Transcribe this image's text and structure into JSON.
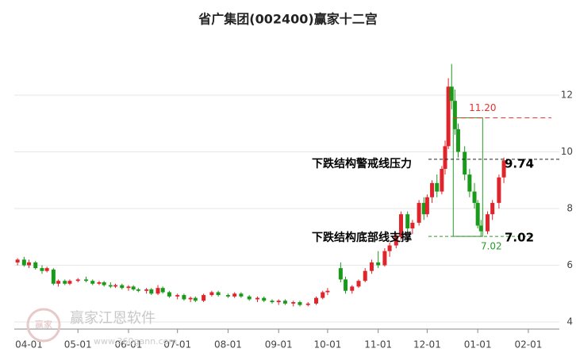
{
  "chart_data": {
    "type": "candlestick",
    "title": "省广集团(002400)赢家十二宫",
    "x": [
      "03-25",
      "03-29",
      "04-01",
      "04-05",
      "04-09",
      "04-12",
      "04-16",
      "04-19",
      "04-23",
      "04-26",
      "05-01",
      "05-06",
      "05-10",
      "05-14",
      "05-17",
      "05-21",
      "05-24",
      "05-28",
      "06-01",
      "06-04",
      "06-07",
      "06-12",
      "06-15",
      "06-19",
      "06-22",
      "06-26",
      "07-01",
      "07-05",
      "07-09",
      "07-12",
      "07-17",
      "07-22",
      "07-26",
      "08-01",
      "08-05",
      "08-09",
      "08-14",
      "08-19",
      "08-23",
      "08-28",
      "09-01",
      "09-05",
      "09-10",
      "09-14",
      "09-19",
      "09-24",
      "09-28",
      "10-01",
      "10-09",
      "10-12",
      "10-16",
      "10-20",
      "10-24",
      "10-28",
      "11-01",
      "11-05",
      "11-08",
      "11-12",
      "11-15",
      "11-19",
      "11-22",
      "11-26",
      "11-29",
      "12-01",
      "12-04",
      "12-07",
      "12-10",
      "12-12",
      "12-14",
      "12-16",
      "12-18",
      "12-20",
      "12-24",
      "12-27",
      "12-30",
      "01-01",
      "01-03",
      "01-07",
      "01-10",
      "01-14",
      "01-17"
    ],
    "open": [
      6.1,
      6.2,
      6.0,
      6.1,
      5.9,
      5.8,
      5.85,
      5.35,
      5.45,
      5.35,
      5.45,
      5.5,
      5.45,
      5.35,
      5.4,
      5.3,
      5.25,
      5.3,
      5.2,
      5.25,
      5.15,
      5.1,
      5.15,
      5.0,
      5.2,
      5.05,
      4.9,
      4.95,
      4.8,
      4.85,
      4.75,
      4.95,
      5.05,
      4.95,
      4.9,
      5.0,
      4.9,
      4.8,
      4.85,
      4.75,
      4.7,
      4.75,
      4.65,
      4.7,
      4.6,
      4.65,
      4.85,
      5.05,
      5.9,
      5.5,
      5.1,
      5.25,
      5.45,
      5.8,
      6.1,
      6.0,
      6.5,
      6.7,
      7.0,
      7.8,
      7.3,
      7.5,
      8.2,
      7.8,
      8.4,
      8.9,
      8.6,
      9.4,
      10.2,
      12.3,
      11.8,
      10.8,
      10.0,
      9.2,
      8.6,
      8.2,
      7.4,
      7.2,
      7.8,
      8.2,
      9.1
    ],
    "high": [
      6.25,
      6.3,
      6.2,
      6.15,
      6.0,
      5.95,
      5.9,
      5.5,
      5.5,
      5.5,
      5.55,
      5.6,
      5.5,
      5.45,
      5.45,
      5.4,
      5.35,
      5.35,
      5.3,
      5.3,
      5.2,
      5.2,
      5.2,
      5.3,
      5.25,
      5.1,
      5.0,
      5.0,
      4.9,
      4.9,
      5.0,
      5.1,
      5.1,
      5.0,
      5.05,
      5.05,
      4.95,
      4.9,
      4.9,
      4.8,
      4.8,
      4.8,
      4.75,
      4.75,
      4.7,
      4.9,
      5.1,
      5.2,
      6.1,
      5.6,
      5.3,
      5.5,
      5.9,
      6.2,
      6.5,
      6.6,
      6.8,
      7.1,
      7.9,
      7.9,
      7.6,
      8.3,
      8.4,
      8.5,
      9.0,
      9.2,
      9.5,
      10.4,
      12.6,
      13.1,
      12.2,
      11.0,
      10.2,
      9.4,
      8.9,
      8.3,
      7.6,
      7.9,
      8.3,
      9.2,
      9.8
    ],
    "low": [
      6.0,
      5.95,
      5.9,
      5.85,
      5.7,
      5.75,
      5.3,
      5.25,
      5.3,
      5.3,
      5.4,
      5.4,
      5.3,
      5.3,
      5.25,
      5.2,
      5.2,
      5.15,
      5.1,
      5.1,
      5.05,
      5.0,
      4.95,
      4.95,
      5.0,
      4.85,
      4.8,
      4.75,
      4.7,
      4.7,
      4.7,
      4.9,
      4.9,
      4.85,
      4.85,
      4.85,
      4.75,
      4.7,
      4.7,
      4.65,
      4.6,
      4.6,
      4.55,
      4.55,
      4.55,
      4.6,
      4.8,
      4.95,
      5.4,
      5.0,
      5.0,
      5.2,
      5.4,
      5.7,
      5.9,
      5.95,
      6.3,
      6.6,
      6.9,
      7.2,
      7.1,
      7.4,
      7.6,
      7.7,
      8.2,
      8.4,
      8.5,
      9.2,
      10.1,
      11.5,
      10.6,
      9.8,
      9.0,
      8.4,
      8.0,
      7.3,
      7.02,
      7.1,
      7.6,
      8.0,
      8.9
    ],
    "close": [
      6.2,
      6.0,
      6.1,
      5.9,
      5.8,
      5.9,
      5.35,
      5.45,
      5.35,
      5.45,
      5.5,
      5.45,
      5.35,
      5.4,
      5.3,
      5.25,
      5.3,
      5.2,
      5.25,
      5.15,
      5.1,
      5.15,
      5.0,
      5.2,
      5.05,
      4.9,
      4.95,
      4.8,
      4.85,
      4.75,
      4.95,
      5.05,
      4.95,
      4.9,
      5.0,
      4.9,
      4.8,
      4.85,
      4.75,
      4.7,
      4.75,
      4.65,
      4.7,
      4.6,
      4.65,
      4.85,
      5.05,
      5.1,
      5.5,
      5.1,
      5.25,
      5.45,
      5.8,
      6.1,
      6.0,
      6.5,
      6.7,
      7.0,
      7.8,
      7.3,
      7.5,
      8.2,
      7.8,
      8.4,
      8.9,
      8.6,
      9.4,
      10.2,
      12.3,
      11.8,
      10.8,
      10.0,
      9.2,
      8.6,
      8.2,
      7.4,
      7.2,
      7.8,
      8.2,
      9.1,
      9.7
    ],
    "up_color": "#e0242b",
    "down_color": "#1a9a1a",
    "xlim": [
      "03-23",
      "02-20"
    ],
    "xticks": [
      "04-01",
      "05-01",
      "06-01",
      "07-01",
      "08-01",
      "09-01",
      "10-01",
      "11-01",
      "12-01",
      "01-01",
      "02-01"
    ],
    "ylim": [
      3.75,
      14
    ],
    "yticks": [
      4,
      6,
      8,
      10,
      12
    ],
    "grid": true,
    "levels": [
      {
        "value": {
          "value": 11.2,
          "label": "11.20"
        },
        "color": "#e83030"
      },
      {
        "value": 9.74,
        "name": "下跌结构警戒线压力",
        "color": "#222222"
      },
      {
        "value": 7.02,
        "name": "下跌结构底部线支撑",
        "color": "#2a9a2a"
      }
    ],
    "range_box": [
      "12-17",
      "01-04"
    ],
    "watermark": {
      "logo": "赢家",
      "name": "赢家江恩软件",
      "url": "www.360gann.com"
    }
  }
}
